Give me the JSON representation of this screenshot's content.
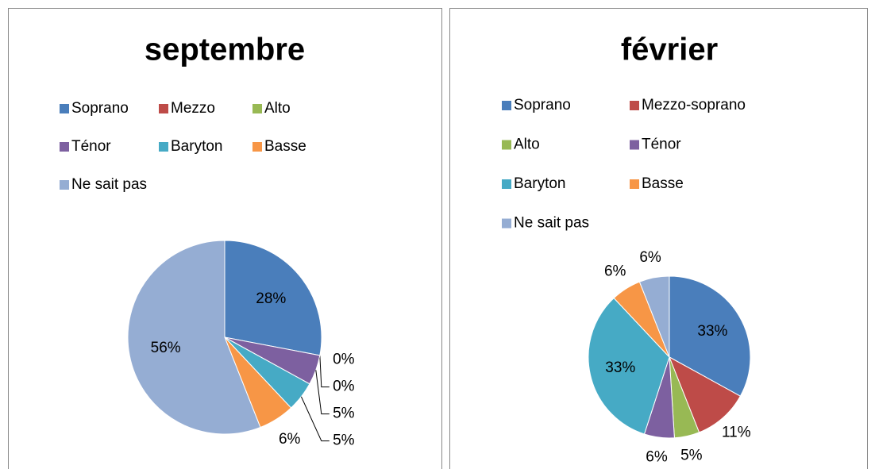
{
  "chart_data": [
    {
      "type": "pie",
      "title": "septembre",
      "categories": [
        "Soprano",
        "Mezzo",
        "Alto",
        "Ténor",
        "Baryton",
        "Basse",
        "Ne sait pas"
      ],
      "values": [
        28,
        0,
        0,
        5,
        5,
        6,
        56
      ],
      "value_labels": [
        "28%",
        "0%",
        "0%",
        "5%",
        "5%",
        "6%",
        "56%"
      ],
      "colors": [
        "#4a7ebb",
        "#be4b48",
        "#98b954",
        "#7d60a0",
        "#46aac5",
        "#f79646",
        "#95add3"
      ]
    },
    {
      "type": "pie",
      "title": "février",
      "categories": [
        "Soprano",
        "Mezzo-soprano",
        "Alto",
        "Ténor",
        "Baryton",
        "Basse",
        "Ne sait pas"
      ],
      "values": [
        33,
        11,
        5,
        6,
        33,
        6,
        6
      ],
      "value_labels": [
        "33%",
        "11%",
        "5%",
        "6%",
        "33%",
        "6%",
        "6%"
      ],
      "colors": [
        "#4a7ebb",
        "#be4b48",
        "#98b954",
        "#7d60a0",
        "#46aac5",
        "#f79646",
        "#95add3"
      ]
    }
  ]
}
